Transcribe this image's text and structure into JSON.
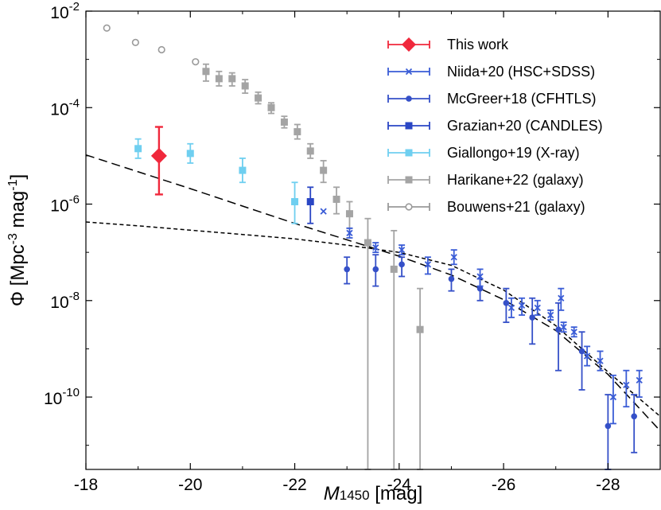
{
  "chart_data": {
    "type": "scatter",
    "x_axis_label": "M1450 [mag]",
    "x_axis_label_parts": {
      "symbol": "M",
      "subscript": "1450",
      "unit": " [mag]"
    },
    "y_axis_label": "Φ [Mpc-3 mag-1]",
    "y_axis_label_parts": {
      "a": "Φ [Mpc",
      "b": "-3",
      "c": " mag",
      "d": "-1",
      "e": "]"
    },
    "xlim": [
      -18,
      -29
    ],
    "ylim_log10": [
      -11.5,
      -2
    ],
    "x_ticks": [
      -18,
      -20,
      -22,
      -24,
      -26,
      -28
    ],
    "x_tick_labels": [
      "-18",
      "-20",
      "-22",
      "-24",
      "-26",
      "-28"
    ],
    "y_ticks": [
      {
        "exp": -2,
        "base": "10",
        "sup": "-2"
      },
      {
        "exp": -4,
        "base": "10",
        "sup": "-4"
      },
      {
        "exp": -6,
        "base": "10",
        "sup": "-6"
      },
      {
        "exp": -8,
        "base": "10",
        "sup": "-8"
      },
      {
        "exp": -10,
        "base": "10",
        "sup": "-10"
      }
    ],
    "legend_position": "top-right",
    "colors": {
      "this_work": "#f0283c",
      "niida": "#3a5cd6",
      "mcgreer": "#3550c8",
      "grazian": "#2a46c4",
      "giallongo": "#6fcff0",
      "harikane": "#a4a4a4",
      "bouwens": "#9a9a9a",
      "model": "#000000"
    },
    "series": [
      {
        "key": "this_work",
        "name": "This work",
        "marker": "diamond",
        "points": [
          {
            "x": -19.4,
            "y": -5.0,
            "ylo": -5.8,
            "yhi": -4.4
          }
        ]
      },
      {
        "key": "niida",
        "name": "Niida+20 (HSC+SDSS)",
        "marker": "x",
        "points": [
          {
            "x": -22.55,
            "y": -6.15,
            "ylo": -6.15,
            "yhi": -6.15
          },
          {
            "x": -23.05,
            "y": -6.6,
            "ylo": -6.7,
            "yhi": -6.5
          },
          {
            "x": -23.55,
            "y": -6.9,
            "ylo": -7.0,
            "yhi": -6.8
          },
          {
            "x": -24.05,
            "y": -6.95,
            "ylo": -7.05,
            "yhi": -6.85
          },
          {
            "x": -24.55,
            "y": -7.25,
            "ylo": -7.45,
            "yhi": -7.1
          },
          {
            "x": -25.05,
            "y": -7.1,
            "ylo": -7.25,
            "yhi": -6.95
          },
          {
            "x": -25.55,
            "y": -7.5,
            "ylo": -7.7,
            "yhi": -7.35
          },
          {
            "x": -26.15,
            "y": -8.15,
            "ylo": -8.35,
            "yhi": -7.95
          },
          {
            "x": -26.35,
            "y": -8.1,
            "ylo": -8.3,
            "yhi": -7.95
          },
          {
            "x": -26.65,
            "y": -8.15,
            "ylo": -8.3,
            "yhi": -8.0
          },
          {
            "x": -26.9,
            "y": -8.3,
            "ylo": -8.4,
            "yhi": -8.2
          },
          {
            "x": -27.1,
            "y": -7.95,
            "ylo": -8.2,
            "yhi": -7.75
          },
          {
            "x": -27.15,
            "y": -8.55,
            "ylo": -8.65,
            "yhi": -8.45
          },
          {
            "x": -27.35,
            "y": -8.65,
            "ylo": -8.75,
            "yhi": -8.55
          },
          {
            "x": -27.6,
            "y": -9.15,
            "ylo": -9.35,
            "yhi": -8.95
          },
          {
            "x": -27.85,
            "y": -9.25,
            "ylo": -9.45,
            "yhi": -9.05
          },
          {
            "x": -28.1,
            "y": -10.0,
            "ylo": -10.55,
            "yhi": -9.55
          },
          {
            "x": -28.35,
            "y": -9.75,
            "ylo": -10.2,
            "yhi": -9.45
          },
          {
            "x": -28.6,
            "y": -9.65,
            "ylo": -10.0,
            "yhi": -9.45
          }
        ]
      },
      {
        "key": "mcgreer",
        "name": "McGreer+18 (CFHTLS)",
        "marker": "circle",
        "points": [
          {
            "x": -23.0,
            "y": -7.35,
            "ylo": -7.65,
            "yhi": -7.1
          },
          {
            "x": -23.55,
            "y": -7.35,
            "ylo": -7.7,
            "yhi": -7.05
          },
          {
            "x": -24.05,
            "y": -7.25,
            "ylo": -7.5,
            "yhi": -7.1
          },
          {
            "x": -25.0,
            "y": -7.55,
            "ylo": -7.8,
            "yhi": -7.35
          },
          {
            "x": -25.55,
            "y": -7.75,
            "ylo": -8.0,
            "yhi": -7.55
          },
          {
            "x": -26.05,
            "y": -8.05,
            "ylo": -8.45,
            "yhi": -7.75
          },
          {
            "x": -26.55,
            "y": -8.35,
            "ylo": -8.9,
            "yhi": -7.95
          },
          {
            "x": -27.05,
            "y": -8.6,
            "ylo": -9.45,
            "yhi": -8.05
          },
          {
            "x": -27.5,
            "y": -9.05,
            "ylo": -9.85,
            "yhi": -8.65
          },
          {
            "x": -28.0,
            "y": -10.6,
            "ylo": -11.5,
            "yhi": -9.95
          },
          {
            "x": -28.5,
            "y": -10.4,
            "ylo": -11.15,
            "yhi": -9.95
          }
        ]
      },
      {
        "key": "grazian",
        "name": "Grazian+20 (CANDLES)",
        "marker": "square",
        "points": [
          {
            "x": -22.3,
            "y": -5.95,
            "ylo": -6.4,
            "yhi": -5.65
          }
        ]
      },
      {
        "key": "giallongo",
        "name": "Giallongo+19 (X-ray)",
        "marker": "square",
        "points": [
          {
            "x": -19.0,
            "y": -4.85,
            "ylo": -5.05,
            "yhi": -4.65
          },
          {
            "x": -20.0,
            "y": -4.95,
            "ylo": -5.15,
            "yhi": -4.75
          },
          {
            "x": -21.0,
            "y": -5.3,
            "ylo": -5.55,
            "yhi": -5.05
          },
          {
            "x": -22.0,
            "y": -5.95,
            "ylo": -6.4,
            "yhi": -5.55
          }
        ]
      },
      {
        "key": "harikane",
        "name": "Harikane+22 (galaxy)",
        "marker": "square",
        "points": [
          {
            "x": -20.3,
            "y": -3.25,
            "ylo": -3.45,
            "yhi": -3.1
          },
          {
            "x": -20.55,
            "y": -3.4,
            "ylo": -3.55,
            "yhi": -3.25
          },
          {
            "x": -20.8,
            "y": -3.4,
            "ylo": -3.55,
            "yhi": -3.28
          },
          {
            "x": -21.05,
            "y": -3.55,
            "ylo": -3.7,
            "yhi": -3.42
          },
          {
            "x": -21.3,
            "y": -3.8,
            "ylo": -3.92,
            "yhi": -3.68
          },
          {
            "x": -21.55,
            "y": -4.0,
            "ylo": -4.12,
            "yhi": -3.9
          },
          {
            "x": -21.8,
            "y": -4.3,
            "ylo": -4.42,
            "yhi": -4.18
          },
          {
            "x": -22.05,
            "y": -4.5,
            "ylo": -4.65,
            "yhi": -4.35
          },
          {
            "x": -22.3,
            "y": -4.9,
            "ylo": -5.05,
            "yhi": -4.75
          },
          {
            "x": -22.55,
            "y": -5.3,
            "ylo": -5.55,
            "yhi": -5.1
          },
          {
            "x": -22.8,
            "y": -5.9,
            "ylo": -6.2,
            "yhi": -5.65
          },
          {
            "x": -23.05,
            "y": -6.2,
            "ylo": -6.5,
            "yhi": -5.95
          },
          {
            "x": -23.4,
            "y": -6.8,
            "ylo": -11.5,
            "yhi": -6.3
          },
          {
            "x": -23.9,
            "y": -7.35,
            "ylo": -11.5,
            "yhi": -6.55
          },
          {
            "x": -24.4,
            "y": -8.6,
            "ylo": -11.5,
            "yhi": -7.75
          }
        ]
      },
      {
        "key": "bouwens",
        "name": "Bouwens+21 (galaxy)",
        "marker": "open-circle",
        "points": [
          {
            "x": -18.4,
            "y": -2.35
          },
          {
            "x": -18.95,
            "y": -2.65
          },
          {
            "x": -19.45,
            "y": -2.8
          },
          {
            "x": -20.1,
            "y": -3.05
          }
        ]
      }
    ],
    "model_lines": [
      {
        "name": "double power-law (long dash)",
        "dash": "long",
        "points": [
          {
            "x": -18.0,
            "y": -4.98
          },
          {
            "x": -19.0,
            "y": -5.33
          },
          {
            "x": -20.0,
            "y": -5.68
          },
          {
            "x": -21.0,
            "y": -6.04
          },
          {
            "x": -22.0,
            "y": -6.4
          },
          {
            "x": -23.0,
            "y": -6.74
          },
          {
            "x": -24.0,
            "y": -7.08
          },
          {
            "x": -25.0,
            "y": -7.47
          },
          {
            "x": -26.0,
            "y": -7.98
          },
          {
            "x": -27.0,
            "y": -8.62
          },
          {
            "x": -28.0,
            "y": -9.53
          },
          {
            "x": -29.0,
            "y": -10.7
          }
        ]
      },
      {
        "name": "double power-law (short dash)",
        "dash": "short",
        "points": [
          {
            "x": -18.0,
            "y": -6.37
          },
          {
            "x": -19.0,
            "y": -6.45
          },
          {
            "x": -20.0,
            "y": -6.54
          },
          {
            "x": -21.0,
            "y": -6.63
          },
          {
            "x": -22.0,
            "y": -6.72
          },
          {
            "x": -23.0,
            "y": -6.85
          },
          {
            "x": -24.0,
            "y": -7.0
          },
          {
            "x": -25.0,
            "y": -7.27
          },
          {
            "x": -26.0,
            "y": -7.78
          },
          {
            "x": -27.0,
            "y": -8.52
          },
          {
            "x": -28.0,
            "y": -9.48
          },
          {
            "x": -29.0,
            "y": -10.4
          }
        ]
      }
    ]
  }
}
